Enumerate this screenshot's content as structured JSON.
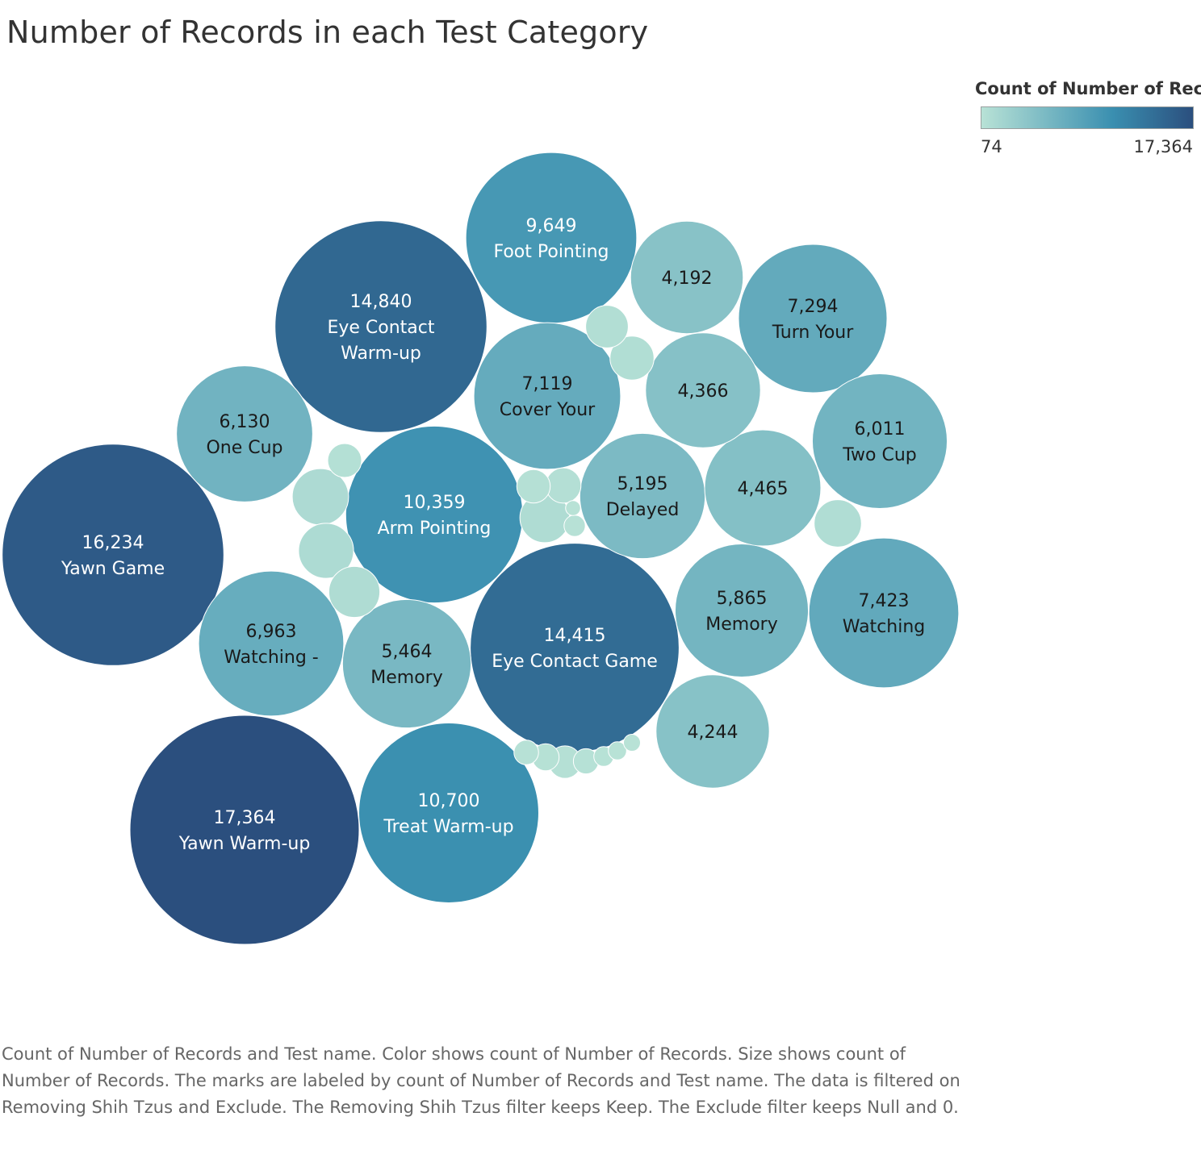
{
  "chart_data": {
    "type": "bubble",
    "title": "Number of Records in each Test Category",
    "measure": "Count of Number of Records",
    "legend": {
      "title": "Count of Number of Rec..",
      "min_label": "74",
      "max_label": "17,364",
      "min": 74,
      "max": 17364,
      "colors": [
        "#b8e2d6",
        "#3a8fb0",
        "#2b4f7e"
      ],
      "placement": "top-right"
    },
    "bubbles": [
      {
        "value": 17364,
        "label_value": "17,364",
        "name": "Yawn Warm-up"
      },
      {
        "value": 16234,
        "label_value": "16,234",
        "name": "Yawn Game"
      },
      {
        "value": 14840,
        "label_value": "14,840",
        "name": "Eye Contact Warm-up"
      },
      {
        "value": 14415,
        "label_value": "14,415",
        "name": "Eye Contact Game"
      },
      {
        "value": 10700,
        "label_value": "10,700",
        "name": "Treat Warm-up"
      },
      {
        "value": 10359,
        "label_value": "10,359",
        "name": "Arm Pointing"
      },
      {
        "value": 9649,
        "label_value": "9,649",
        "name": "Foot Pointing"
      },
      {
        "value": 7423,
        "label_value": "7,423",
        "name": "Watching"
      },
      {
        "value": 7294,
        "label_value": "7,294",
        "name": "Turn Your"
      },
      {
        "value": 7119,
        "label_value": "7,119",
        "name": "Cover Your"
      },
      {
        "value": 6963,
        "label_value": "6,963",
        "name": "Watching -"
      },
      {
        "value": 6130,
        "label_value": "6,130",
        "name": "One Cup"
      },
      {
        "value": 6011,
        "label_value": "6,011",
        "name": "Two Cup"
      },
      {
        "value": 5865,
        "label_value": "5,865",
        "name": "Memory"
      },
      {
        "value": 5464,
        "label_value": "5,464",
        "name": "Memory"
      },
      {
        "value": 5195,
        "label_value": "5,195",
        "name": "Delayed"
      },
      {
        "value": 4465,
        "label_value": "4,465",
        "name": ""
      },
      {
        "value": 4366,
        "label_value": "4,366",
        "name": ""
      },
      {
        "value": 4244,
        "label_value": "4,244",
        "name": ""
      },
      {
        "value": 4192,
        "label_value": "4,192",
        "name": ""
      },
      {
        "value": 1050,
        "label_value": "",
        "name": ""
      },
      {
        "value": 1000,
        "label_value": "",
        "name": ""
      },
      {
        "value": 860,
        "label_value": "",
        "name": ""
      },
      {
        "value": 820,
        "label_value": "",
        "name": ""
      },
      {
        "value": 740,
        "label_value": "",
        "name": ""
      },
      {
        "value": 640,
        "label_value": "",
        "name": ""
      },
      {
        "value": 600,
        "label_value": "",
        "name": ""
      },
      {
        "value": 410,
        "label_value": "",
        "name": ""
      },
      {
        "value": 380,
        "label_value": "",
        "name": ""
      },
      {
        "value": 370,
        "label_value": "",
        "name": ""
      },
      {
        "value": 350,
        "label_value": "",
        "name": ""
      },
      {
        "value": 240,
        "label_value": "",
        "name": ""
      },
      {
        "value": 210,
        "label_value": "",
        "name": ""
      },
      {
        "value": 200,
        "label_value": "",
        "name": ""
      },
      {
        "value": 150,
        "label_value": "",
        "name": ""
      },
      {
        "value": 130,
        "label_value": "",
        "name": ""
      },
      {
        "value": 110,
        "label_value": "",
        "name": ""
      },
      {
        "value": 95,
        "label_value": "",
        "name": ""
      },
      {
        "value": 74,
        "label_value": "",
        "name": ""
      }
    ]
  },
  "caption": "Count of Number of Records and Test name.  Color shows count of Number of Records.  Size shows count of Number of Records.  The marks are labeled by count of Number of Records and Test name. The data is filtered on Removing Shih Tzus and Exclude. The Removing Shih Tzus filter keeps Keep. The Exclude filter keeps Null and 0."
}
